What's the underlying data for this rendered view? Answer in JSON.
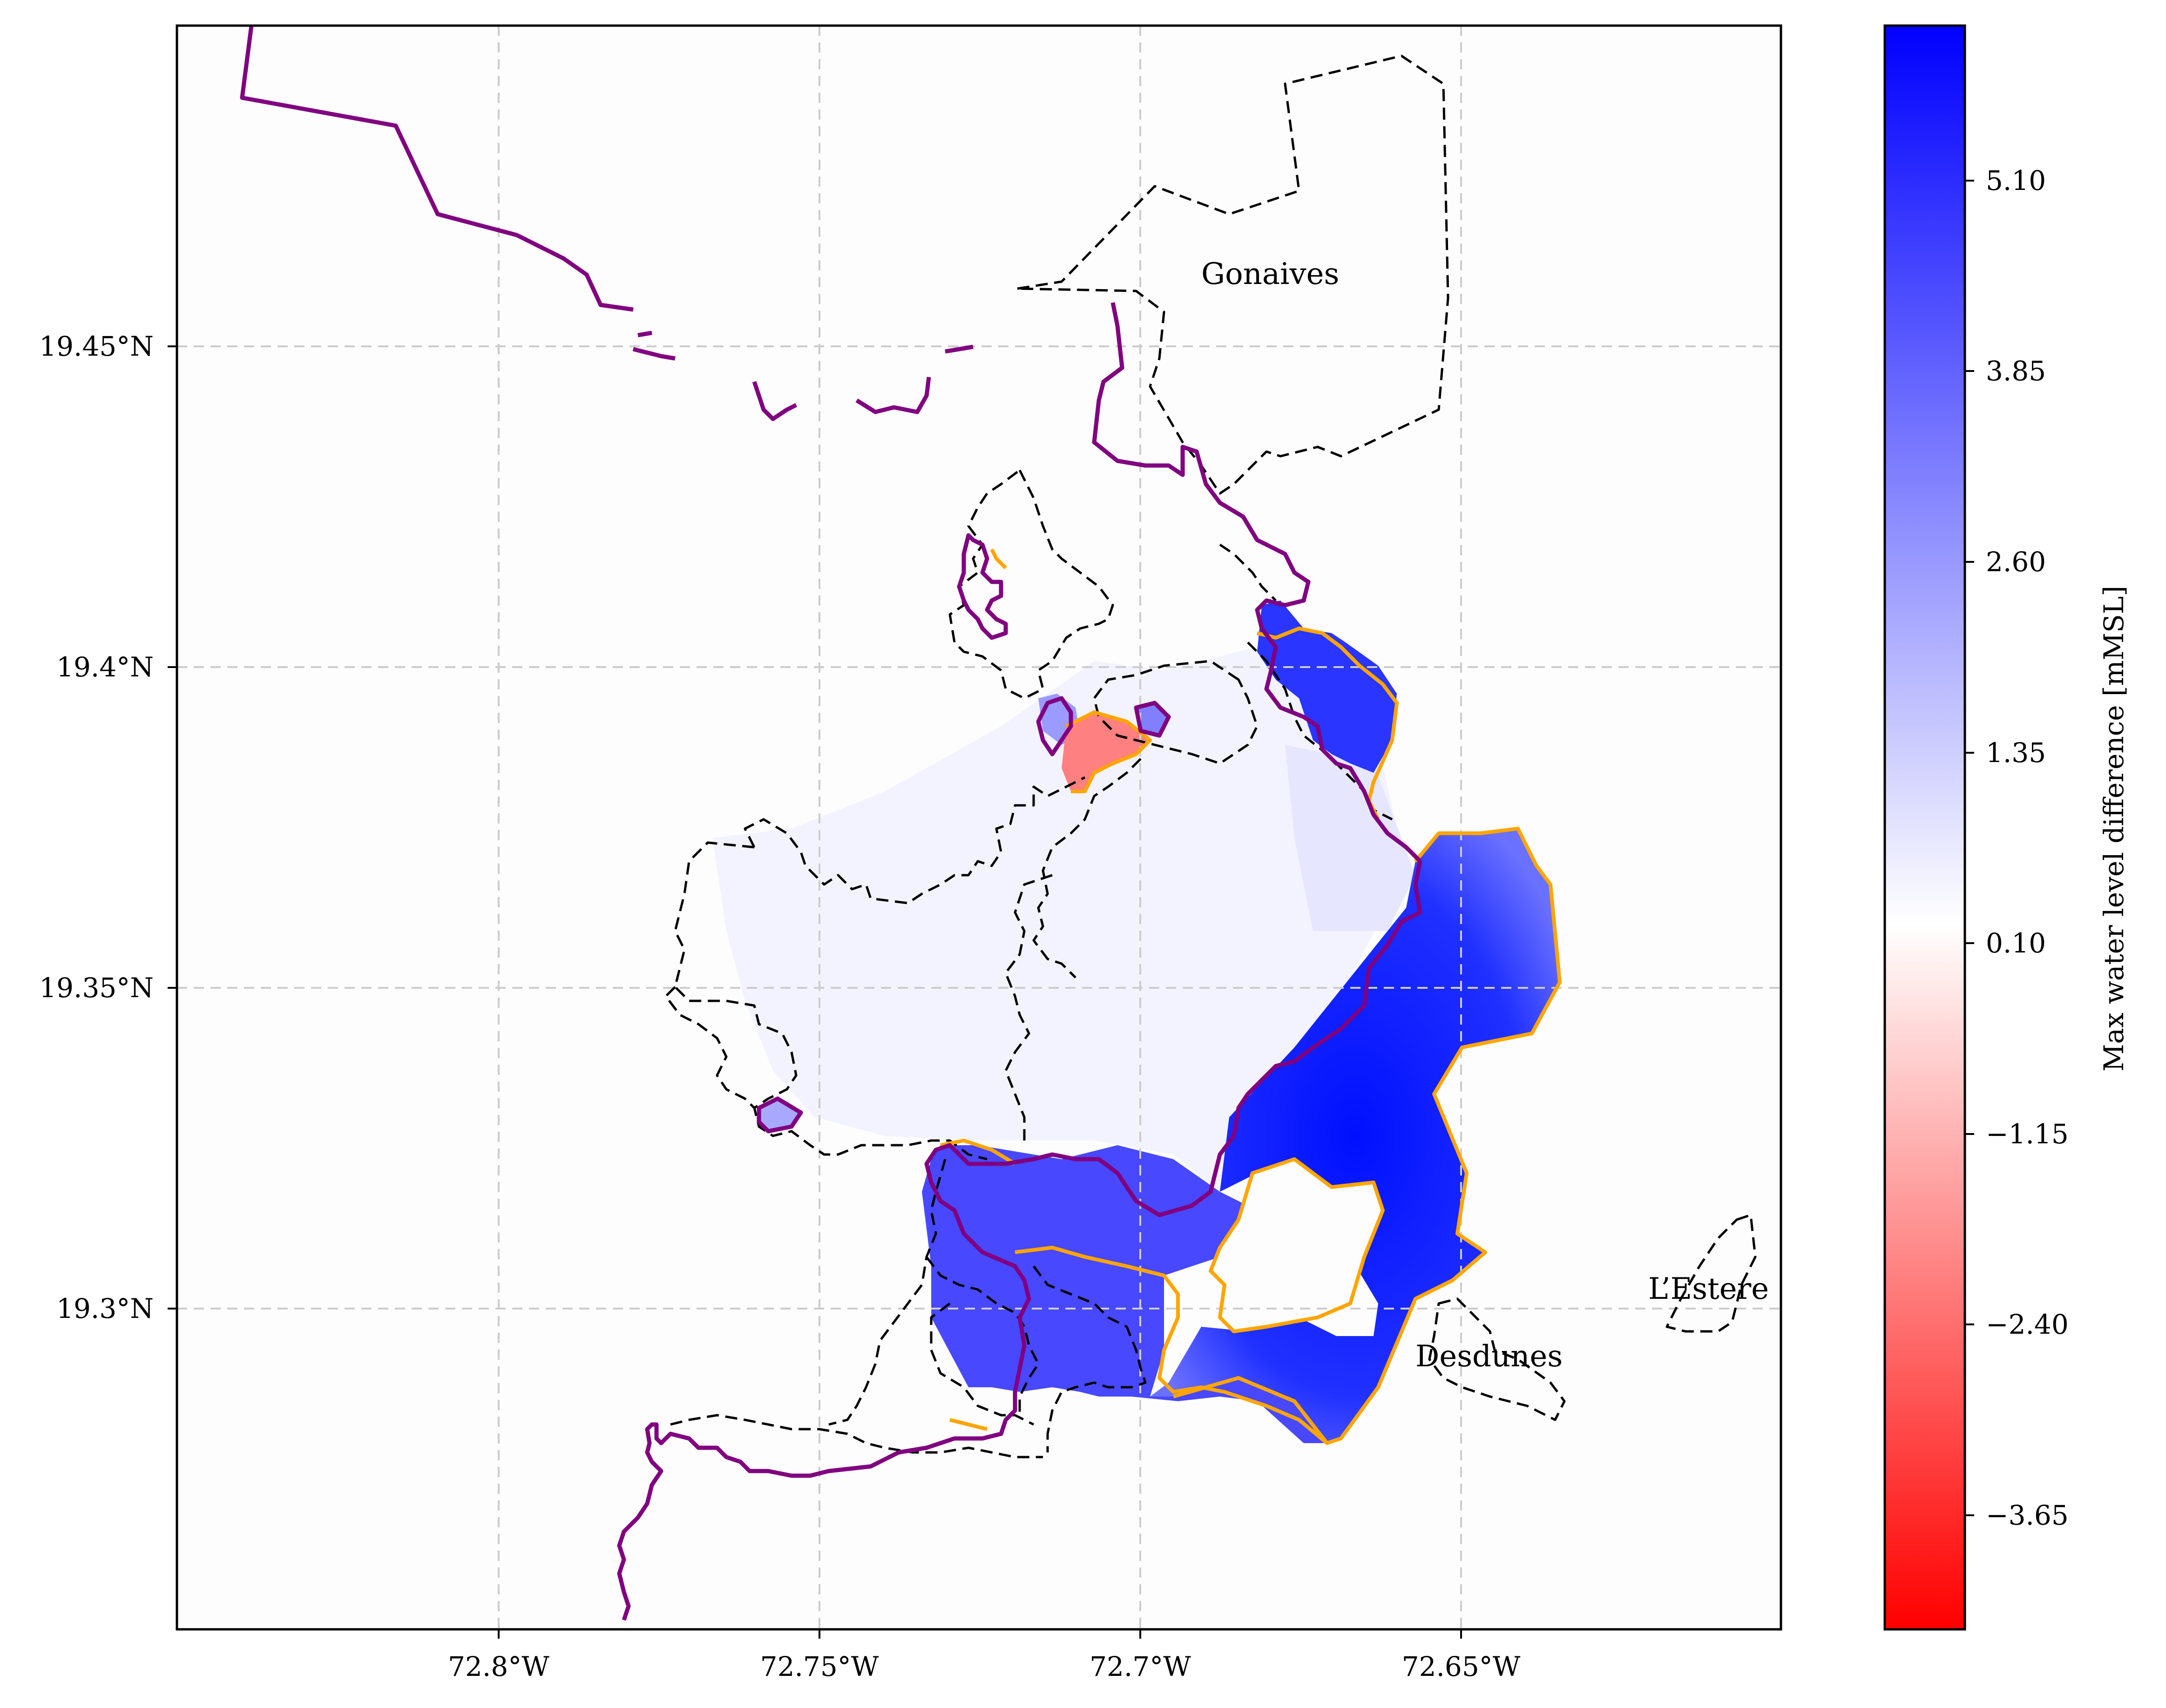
{
  "map": {
    "lon_ticks": [
      {
        "value": -72.8,
        "label": "72.8°W"
      },
      {
        "value": -72.75,
        "label": "72.75°W"
      },
      {
        "value": -72.7,
        "label": "72.7°W"
      },
      {
        "value": -72.65,
        "label": "72.65°W"
      }
    ],
    "lat_ticks": [
      {
        "value": 19.45,
        "label": "19.45°N"
      },
      {
        "value": 19.4,
        "label": "19.4°N"
      },
      {
        "value": 19.35,
        "label": "19.35°N"
      },
      {
        "value": 19.3,
        "label": "19.3°N"
      }
    ],
    "lon_range": [
      -72.85,
      -72.6
    ],
    "lat_range": [
      19.25,
      19.5
    ],
    "places": [
      {
        "name": "Gonaives",
        "lon": -72.678,
        "lat": 19.462
      },
      {
        "name": "L’Estere",
        "lon": -72.612,
        "lat": 19.303
      },
      {
        "name": "Desdunes",
        "lon": -72.644,
        "lat": 19.292
      }
    ],
    "colors": {
      "coastline": "#800080",
      "flood_extent": "#ffa500",
      "boundaries": "#000000",
      "grid": "#cccccc"
    }
  },
  "colorbar": {
    "label": "Max water level difference [mMSL]",
    "ticks": [
      "5.10",
      "3.85",
      "2.60",
      "1.35",
      "0.10",
      "−1.15",
      "−2.40",
      "−3.65"
    ],
    "tick_values": [
      5.1,
      3.85,
      2.6,
      1.35,
      0.1,
      -1.15,
      -2.4,
      -3.65
    ],
    "range": [
      -4.2,
      5.6
    ],
    "color_max": "#0000ff",
    "color_mid": "#ffffff",
    "color_min": "#ff0000"
  }
}
